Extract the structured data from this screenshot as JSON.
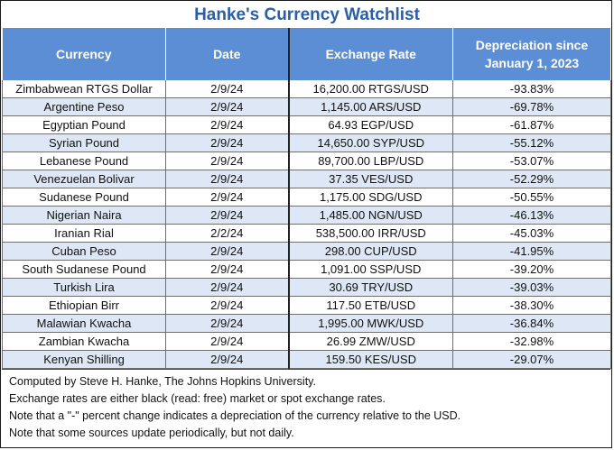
{
  "title": "Hanke's Currency Watchlist",
  "headers": {
    "currency": "Currency",
    "date": "Date",
    "rate": "Exchange Rate",
    "depreciation_line1": "Depreciation since",
    "depreciation_line2": "January 1, 2023"
  },
  "rows": [
    {
      "currency": "Zimbabwean RTGS Dollar",
      "date": "2/9/24",
      "rate": "16,200.00 RTGS/USD",
      "change": "-93.83%"
    },
    {
      "currency": "Argentine Peso",
      "date": "2/9/24",
      "rate": "1,145.00 ARS/USD",
      "change": "-69.78%"
    },
    {
      "currency": "Egyptian Pound",
      "date": "2/9/24",
      "rate": "64.93 EGP/USD",
      "change": "-61.87%"
    },
    {
      "currency": "Syrian Pound",
      "date": "2/9/24",
      "rate": "14,650.00 SYP/USD",
      "change": "-55.12%"
    },
    {
      "currency": "Lebanese Pound",
      "date": "2/9/24",
      "rate": "89,700.00 LBP/USD",
      "change": "-53.07%"
    },
    {
      "currency": "Venezuelan Bolivar",
      "date": "2/9/24",
      "rate": "37.35 VES/USD",
      "change": "-52.29%"
    },
    {
      "currency": "Sudanese Pound",
      "date": "2/9/24",
      "rate": "1,175.00 SDG/USD",
      "change": "-50.55%"
    },
    {
      "currency": "Nigerian Naira",
      "date": "2/9/24",
      "rate": "1,485.00 NGN/USD",
      "change": "-46.13%"
    },
    {
      "currency": "Iranian Rial",
      "date": "2/2/24",
      "rate": "538,500.00 IRR/USD",
      "change": "-45.03%"
    },
    {
      "currency": "Cuban Peso",
      "date": "2/9/24",
      "rate": "298.00 CUP/USD",
      "change": "-41.95%"
    },
    {
      "currency": "South Sudanese Pound",
      "date": "2/9/24",
      "rate": "1,091.00 SSP/USD",
      "change": "-39.20%"
    },
    {
      "currency": "Turkish Lira",
      "date": "2/9/24",
      "rate": "30.69 TRY/USD",
      "change": "-39.03%"
    },
    {
      "currency": "Ethiopian Birr",
      "date": "2/9/24",
      "rate": "117.50 ETB/USD",
      "change": "-38.30%"
    },
    {
      "currency": "Malawian Kwacha",
      "date": "2/9/24",
      "rate": "1,995.00 MWK/USD",
      "change": "-36.84%"
    },
    {
      "currency": "Zambian Kwacha",
      "date": "2/9/24",
      "rate": "26.99 ZMW/USD",
      "change": "-32.98%"
    },
    {
      "currency": "Kenyan Shilling",
      "date": "2/9/24",
      "rate": "159.50 KES/USD",
      "change": "-29.07%"
    }
  ],
  "notes": [
    "Computed by Steve H. Hanke, The Johns Hopkins University.",
    "Exchange rates are either black (read: free) market or spot exchange rates.",
    "Note that a \"-\" percent change indicates a depreciation of the currency relative to the USD.",
    "Note that some sources update periodically, but not daily."
  ],
  "colors": {
    "title": "#2c5ea8",
    "header_bg": "#5b8ed4",
    "row_alt_bg": "#dde7f5"
  }
}
